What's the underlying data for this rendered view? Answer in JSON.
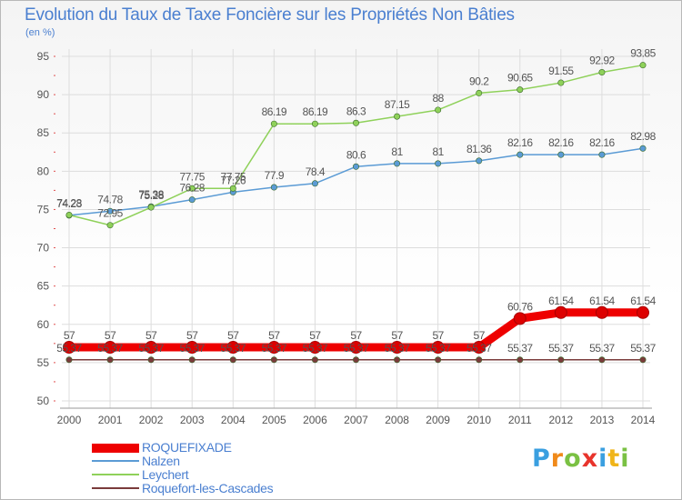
{
  "title": "Evolution du Taux de Taxe Foncière sur les Propriétés Non Bâties",
  "unit": "(en %)",
  "logo": {
    "letters": [
      "P",
      "r",
      "o",
      "x",
      "i",
      "t",
      "i"
    ],
    "colors": [
      "#3a9fe0",
      "#f08a1a",
      "#7ac143",
      "#e8342c",
      "#3a9fe0",
      "#f0b51a",
      "#7ac143"
    ]
  },
  "colors": {
    "title": "#4a7fd0",
    "tick": "#555555",
    "grid": "#dddddd",
    "point_label": "#555555"
  },
  "chart_data": {
    "type": "line",
    "title": "Evolution du Taux de Taxe Foncière sur les Propriétés Non Bâties",
    "ylabel": "(en %)",
    "xlabel": "",
    "x": [
      "2000",
      "2001",
      "2002",
      "2003",
      "2004",
      "2005",
      "2006",
      "2007",
      "2008",
      "2009",
      "2010",
      "2011",
      "2012",
      "2013",
      "2014"
    ],
    "ylim": [
      50,
      95
    ],
    "yticks": [
      50,
      55,
      60,
      65,
      70,
      75,
      80,
      85,
      90,
      95
    ],
    "grid": true,
    "legend": "bottom-left",
    "series": [
      {
        "name": "ROQUEFIXADE",
        "color": "#ee0000",
        "bold": true,
        "values": [
          57,
          57,
          57,
          57,
          57,
          57,
          57,
          57,
          57,
          57,
          57,
          60.76,
          61.54,
          61.54,
          61.54
        ],
        "labels": [
          "57",
          "57",
          "57",
          "57",
          "57",
          "57",
          "57",
          "57",
          "57",
          "57",
          "57",
          "60.76",
          "61.54",
          "61.54",
          "61.54"
        ]
      },
      {
        "name": "Nalzen",
        "color": "#5b9bd5",
        "bold": false,
        "values": [
          74.23,
          74.78,
          75.38,
          76.28,
          77.26,
          77.9,
          78.4,
          80.6,
          81,
          81,
          81.36,
          82.16,
          82.16,
          82.16,
          82.98
        ],
        "labels": [
          "74.23",
          "74.78",
          "75.38",
          "76.28",
          "77.26",
          "77.9",
          "78.4",
          "80.6",
          "81",
          "81",
          "81.36",
          "82.16",
          "82.16",
          "82.16",
          "82.98"
        ]
      },
      {
        "name": "Leychert",
        "color": "#8fd15a",
        "bold": false,
        "values": [
          74.28,
          72.95,
          75.28,
          77.75,
          77.75,
          86.19,
          86.19,
          86.3,
          87.15,
          88,
          90.2,
          90.65,
          91.55,
          92.92,
          93.85
        ],
        "labels": [
          "74.28",
          "72.95",
          "75.28",
          "77.75",
          "77.75",
          "86.19",
          "86.19",
          "86.3",
          "87.15",
          "88",
          "90.2",
          "90.65",
          "91.55",
          "92.92",
          "93.85"
        ]
      },
      {
        "name": "Roquefort-les-Cascades",
        "color": "#7a3b3b",
        "bold": false,
        "values": [
          55.37,
          55.37,
          55.37,
          55.37,
          55.37,
          55.37,
          55.37,
          55.37,
          55.37,
          55.37,
          55.37,
          55.37,
          55.37,
          55.37,
          55.37
        ],
        "labels": [
          "55.37",
          "55.37",
          "55.37",
          "55.37",
          "55.37",
          "55.37",
          "55.37",
          "55.37",
          "55.37",
          "55.37",
          "55.37",
          "55.37",
          "55.37",
          "55.37",
          "55.37"
        ]
      }
    ]
  }
}
